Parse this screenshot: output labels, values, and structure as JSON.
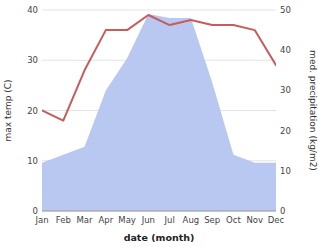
{
  "chart_data": {
    "type": "line",
    "categories": [
      "Jan",
      "Feb",
      "Mar",
      "Apr",
      "May",
      "Jun",
      "Jul",
      "Aug",
      "Sep",
      "Oct",
      "Nov",
      "Dec"
    ],
    "xlabel": "date (month)",
    "ylabel": "max temp (C)",
    "y2label": "med. precipitation (kg/m2)",
    "series": [
      {
        "type": "area",
        "axis": "y2",
        "color": "#b8c8f0",
        "values": [
          12,
          14,
          16,
          30,
          38,
          49,
          48,
          48,
          32,
          14,
          12,
          12
        ]
      },
      {
        "type": "line",
        "color": "#c85b5b",
        "values": [
          20,
          18,
          28,
          36,
          36,
          39,
          37,
          38,
          37,
          37,
          36,
          29
        ]
      }
    ],
    "ylim": [
      0,
      40
    ],
    "yticks": [
      0,
      10,
      20,
      30,
      40
    ],
    "y2lim": [
      0,
      50
    ],
    "y2ticks": [
      0,
      10,
      20,
      30,
      40,
      50
    ],
    "grid": true
  }
}
